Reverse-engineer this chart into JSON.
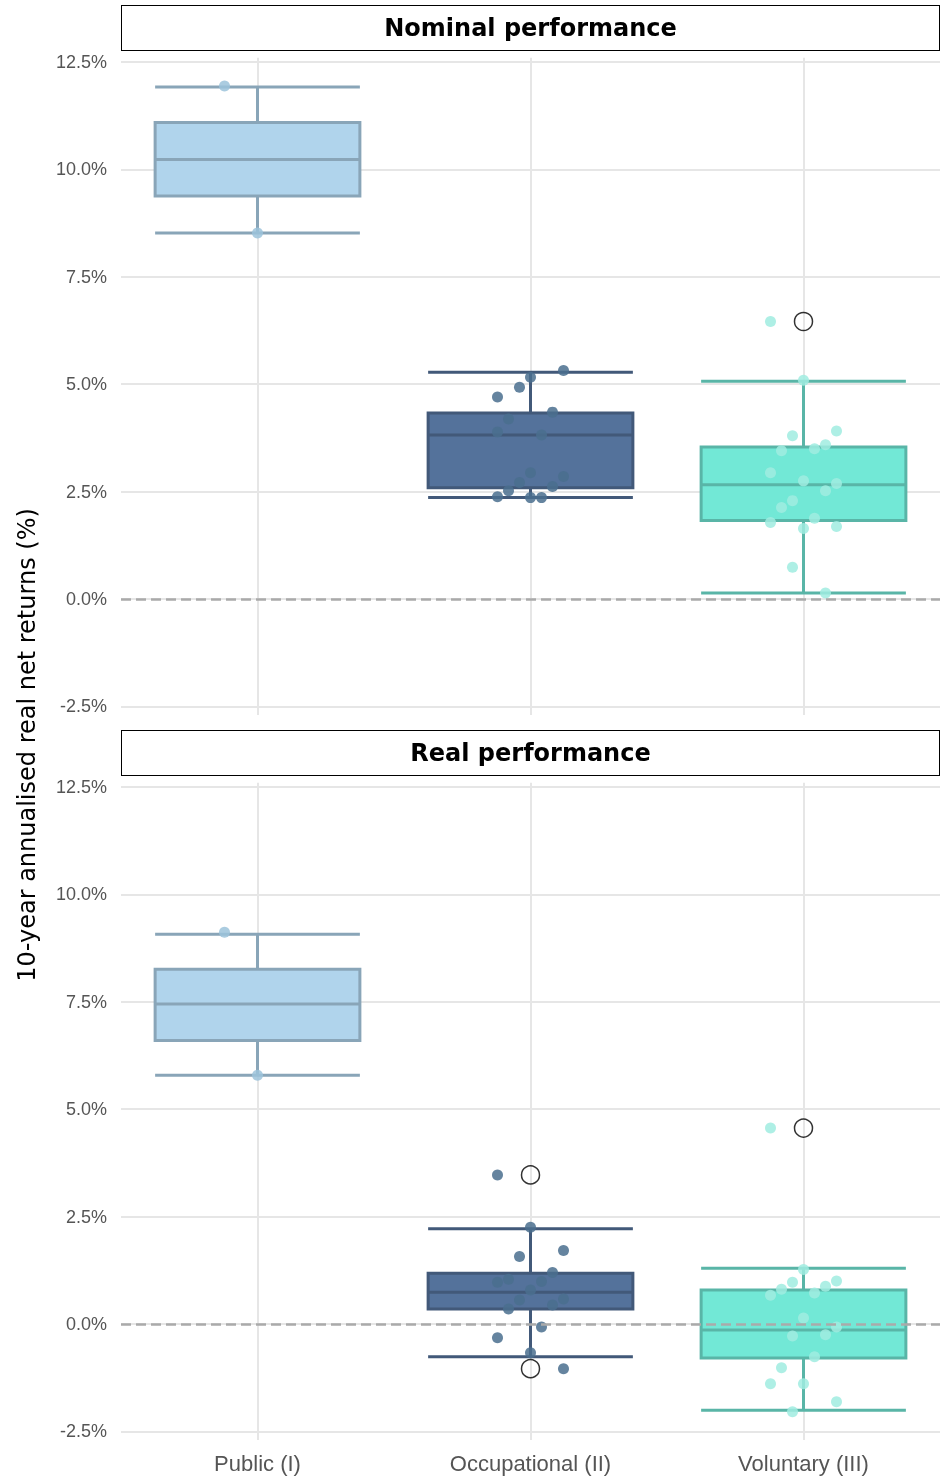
{
  "chart_data": [
    {
      "type": "box",
      "title": "Nominal performance",
      "ylabel": "10-year annualised real net returns (%)",
      "categories": [
        "Public (I)",
        "Occupational (II)",
        "Voluntary (III)"
      ],
      "colors": [
        "#b0d4ec",
        "#54729b",
        "#72e8d6"
      ],
      "boxes": [
        {
          "low": 8.52,
          "q1": 9.38,
          "median": 10.23,
          "q3": 11.09,
          "high": 11.92
        },
        {
          "low": 2.36,
          "q1": 2.59,
          "median": 3.82,
          "q3": 4.33,
          "high": 5.28
        },
        {
          "low": 0.14,
          "q1": 1.83,
          "median": 2.66,
          "q3": 3.54,
          "high": 5.07,
          "outliers": [
            6.46
          ]
        }
      ],
      "series": [
        {
          "type": "scatter",
          "color": "#9cc3da",
          "x": [
            "Public (I)",
            "Public (I)"
          ],
          "values": [
            11.94,
            8.52
          ]
        },
        {
          "type": "scatter",
          "color": "#4a6e8e",
          "x": [
            "Occupational (II)",
            "Occupational (II)",
            "Occupational (II)",
            "Occupational (II)",
            "Occupational (II)",
            "Occupational (II)",
            "Occupational (II)",
            "Occupational (II)",
            "Occupational (II)",
            "Occupational (II)",
            "Occupational (II)",
            "Occupational (II)",
            "Occupational (II)",
            "Occupational (II)",
            "Occupational (II)",
            "Occupational (II)"
          ],
          "values": [
            4.7,
            5.16,
            5.32,
            4.93,
            4.35,
            4.19,
            3.82,
            3.89,
            2.94,
            2.85,
            2.71,
            2.62,
            2.52,
            2.36,
            2.38,
            2.36
          ]
        },
        {
          "type": "scatter",
          "color": "#a0ece0",
          "x": [
            "Voluntary (III)",
            "Voluntary (III)",
            "Voluntary (III)",
            "Voluntary (III)",
            "Voluntary (III)",
            "Voluntary (III)",
            "Voluntary (III)",
            "Voluntary (III)",
            "Voluntary (III)",
            "Voluntary (III)",
            "Voluntary (III)",
            "Voluntary (III)",
            "Voluntary (III)",
            "Voluntary (III)",
            "Voluntary (III)",
            "Voluntary (III)",
            "Voluntary (III)",
            "Voluntary (III)",
            "Voluntary (III)"
          ],
          "values": [
            6.46,
            5.09,
            3.91,
            3.8,
            3.59,
            3.45,
            3.5,
            2.94,
            2.75,
            2.69,
            2.29,
            2.52,
            2.13,
            1.88,
            1.78,
            1.64,
            1.69,
            0.74,
            0.14
          ]
        }
      ],
      "ylim": [
        -2.7,
        12.6
      ],
      "yticks": [
        {
          "value": -2.5,
          "label": "-2.5%"
        },
        {
          "value": 0,
          "label": "0.0%"
        },
        {
          "value": 2.5,
          "label": "2.5%"
        },
        {
          "value": 5,
          "label": "5.0%"
        },
        {
          "value": 7.5,
          "label": "7.5%"
        },
        {
          "value": 10,
          "label": "10.0%"
        },
        {
          "value": 12.5,
          "label": "12.5%"
        }
      ],
      "grid": true,
      "tick_labels": "y",
      "ref_lines": [
        {
          "axis": "y",
          "value": 0,
          "color": "#aaaaaa",
          "line_style": "dashed"
        }
      ]
    },
    {
      "type": "box",
      "title": "Real performance",
      "categories": [
        "Public (I)",
        "Occupational (II)",
        "Voluntary (III)"
      ],
      "colors": [
        "#b0d4ec",
        "#54729b",
        "#72e8d6"
      ],
      "boxes": [
        {
          "low": 5.79,
          "q1": 6.6,
          "median": 7.45,
          "q3": 8.26,
          "high": 9.07
        },
        {
          "low": -0.76,
          "q1": 0.35,
          "median": 0.74,
          "q3": 1.18,
          "high": 2.22,
          "outliers": [
            3.47,
            -1.04
          ]
        },
        {
          "low": -2.01,
          "q1": -0.79,
          "median": -0.14,
          "q3": 0.79,
          "high": 1.3,
          "outliers": [
            4.56
          ]
        }
      ],
      "series": [
        {
          "type": "scatter",
          "color": "#9cc3da",
          "x": [
            "Public (I)",
            "Public (I)"
          ],
          "values": [
            9.12,
            5.79
          ]
        },
        {
          "type": "scatter",
          "color": "#4a6e8e",
          "x": [
            "Occupational (II)",
            "Occupational (II)",
            "Occupational (II)",
            "Occupational (II)",
            "Occupational (II)",
            "Occupational (II)",
            "Occupational (II)",
            "Occupational (II)",
            "Occupational (II)",
            "Occupational (II)",
            "Occupational (II)",
            "Occupational (II)",
            "Occupational (II)",
            "Occupational (II)",
            "Occupational (II)",
            "Occupational (II)",
            "Occupational (II)"
          ],
          "values": [
            3.47,
            2.25,
            1.71,
            1.57,
            1.2,
            1.04,
            0.99,
            0.97,
            0.79,
            0.58,
            0.56,
            0.44,
            0.35,
            -0.07,
            -0.32,
            -0.67,
            -1.04
          ]
        },
        {
          "type": "scatter",
          "color": "#a0ece0",
          "x": [
            "Voluntary (III)",
            "Voluntary (III)",
            "Voluntary (III)",
            "Voluntary (III)",
            "Voluntary (III)",
            "Voluntary (III)",
            "Voluntary (III)",
            "Voluntary (III)",
            "Voluntary (III)",
            "Voluntary (III)",
            "Voluntary (III)",
            "Voluntary (III)",
            "Voluntary (III)",
            "Voluntary (III)",
            "Voluntary (III)",
            "Voluntary (III)",
            "Voluntary (III)",
            "Voluntary (III)"
          ],
          "values": [
            4.56,
            1.27,
            1.0,
            0.97,
            0.88,
            0.81,
            0.72,
            0.67,
            0.14,
            -0.07,
            -0.28,
            -0.25,
            -1.02,
            -0.76,
            -1.39,
            -1.39,
            -1.81,
            -2.04
          ]
        }
      ],
      "ylim": [
        -2.7,
        12.6
      ],
      "yticks": [
        {
          "value": -2.5,
          "label": "-2.5%"
        },
        {
          "value": 0,
          "label": "0.0%"
        },
        {
          "value": 2.5,
          "label": "2.5%"
        },
        {
          "value": 5,
          "label": "5.0%"
        },
        {
          "value": 7.5,
          "label": "7.5%"
        },
        {
          "value": 10,
          "label": "10.0%"
        },
        {
          "value": 12.5,
          "label": "12.5%"
        }
      ],
      "grid": true,
      "ref_lines": [
        {
          "axis": "y",
          "value": 0,
          "color": "#aaaaaa",
          "line_style": "dashed"
        }
      ]
    }
  ]
}
